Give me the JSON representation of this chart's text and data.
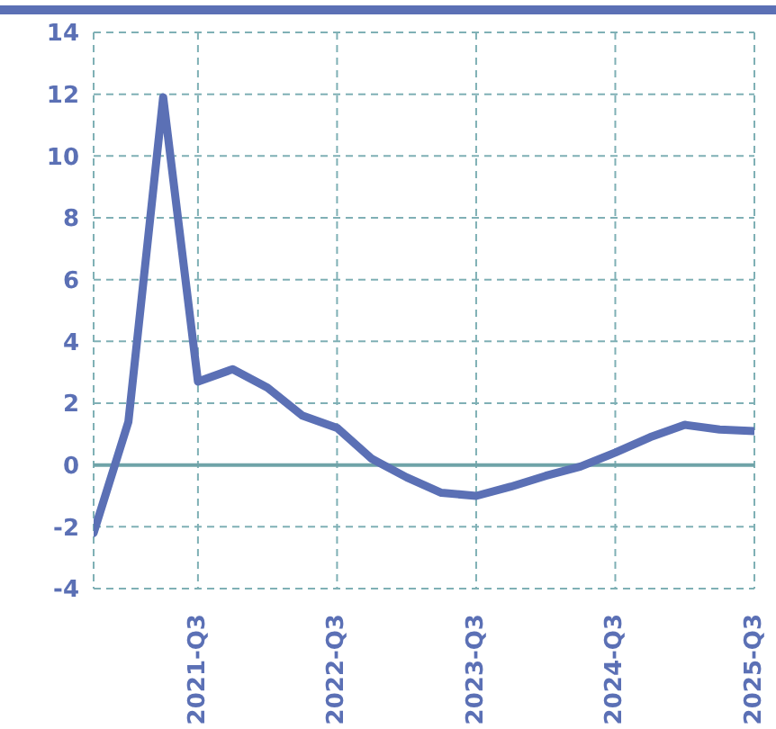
{
  "chart_data": {
    "type": "line",
    "categories": [
      null,
      null,
      null,
      "2021-Q3",
      null,
      null,
      null,
      "2022-Q3",
      null,
      null,
      null,
      "2023-Q3",
      null,
      null,
      null,
      "2024-Q3",
      null,
      null,
      null,
      "2025-Q3"
    ],
    "values": [
      -2.2,
      1.4,
      11.9,
      2.7,
      3.1,
      2.5,
      1.6,
      1.2,
      0.2,
      -0.4,
      -0.9,
      -1.0,
      -0.7,
      -0.35,
      -0.05,
      0.4,
      0.9,
      1.3,
      1.15,
      1.1
    ],
    "color": "#5b70b5",
    "ylim": [
      -4,
      14
    ],
    "yticks": [
      -4,
      -2,
      0,
      2,
      4,
      6,
      8,
      10,
      12,
      14
    ],
    "grid": true,
    "marker": "none",
    "line_style": "solid",
    "ref_lines": [
      {
        "axis": "y",
        "value": 0,
        "color": "#6fa3a8",
        "line_style": "solid"
      }
    ]
  }
}
